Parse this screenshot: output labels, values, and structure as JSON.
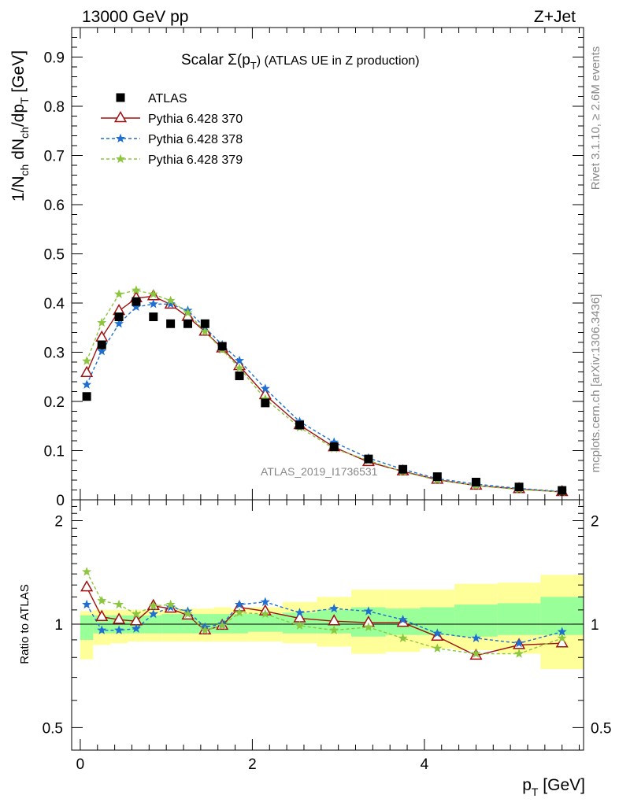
{
  "header": {
    "energy_label": "13000 GeV pp",
    "process_label": "Z+Jet"
  },
  "side_labels": {
    "rivet": "Rivet 3.1.10, ≥ 2.6M events",
    "mcplots": "mcplots.cern.ch [arXiv:1306.3436]"
  },
  "chart_data": [
    {
      "type": "line",
      "title": "Scalar Σ(p_T) (ATLAS UE in Z production)",
      "title_parts": {
        "main": "Scalar Σ(p",
        "sub": "T",
        "tail": ") (ATLAS UE in Z production)"
      },
      "ylabel": "1/N_ch dN_ch/dp_T [GeV]",
      "watermark": "ATLAS_2019_I1736531",
      "xlim": [
        -0.1,
        5.85
      ],
      "ylim": [
        0,
        0.96
      ],
      "yticks": [
        0,
        0.1,
        0.2,
        0.3,
        0.4,
        0.5,
        0.6,
        0.7,
        0.8,
        0.9
      ],
      "ytick_labels": [
        "0",
        "0.1",
        "0.2",
        "0.3",
        "0.4",
        "0.5",
        "0.6",
        "0.7",
        "0.8",
        "0.9"
      ],
      "legend_position": "top-left",
      "x": [
        0.075,
        0.25,
        0.45,
        0.65,
        0.85,
        1.05,
        1.25,
        1.45,
        1.65,
        1.85,
        2.15,
        2.55,
        2.95,
        3.35,
        3.75,
        4.15,
        4.6,
        5.1,
        5.6
      ],
      "series": [
        {
          "name": "ATLAS",
          "color": "#000000",
          "marker": "square",
          "values": [
            0.21,
            0.315,
            0.372,
            0.403,
            0.372,
            0.358,
            0.358,
            0.358,
            0.312,
            0.252,
            0.197,
            0.152,
            0.108,
            0.083,
            0.062,
            0.047,
            0.036,
            0.026,
            0.019
          ]
        },
        {
          "name": "Pythia 6.428 370",
          "color": "#a01010",
          "marker": "triangle",
          "dash": "",
          "values": [
            0.258,
            0.33,
            0.384,
            0.41,
            0.414,
            0.397,
            0.372,
            0.342,
            0.308,
            0.272,
            0.213,
            0.152,
            0.107,
            0.077,
            0.058,
            0.041,
            0.029,
            0.022,
            0.016
          ]
        },
        {
          "name": "Pythia 6.428 378",
          "color": "#1f6fd0",
          "marker": "star",
          "dash": "4,3",
          "values": [
            0.234,
            0.302,
            0.358,
            0.392,
            0.398,
            0.398,
            0.385,
            0.35,
            0.315,
            0.283,
            0.226,
            0.159,
            0.117,
            0.085,
            0.062,
            0.043,
            0.032,
            0.023,
            0.017
          ]
        },
        {
          "name": "Pythia 6.428 379",
          "color": "#8cc63f",
          "marker": "star",
          "dash": "4,3",
          "values": [
            0.282,
            0.36,
            0.418,
            0.426,
            0.418,
            0.405,
            0.38,
            0.342,
            0.305,
            0.268,
            0.205,
            0.147,
            0.104,
            0.08,
            0.057,
            0.04,
            0.029,
            0.021,
            0.016
          ]
        }
      ]
    },
    {
      "type": "line",
      "ylabel": "Ratio to ATLAS",
      "xlabel": "p_T [GeV]",
      "xlim": [
        -0.1,
        5.85
      ],
      "xticks": [
        0,
        2,
        4
      ],
      "xtick_labels": [
        "0",
        "2",
        "4"
      ],
      "ylim": [
        0.43,
        2.3
      ],
      "yscale": "log",
      "yticks": [
        0.5,
        1,
        2
      ],
      "ytick_labels": [
        "0.5",
        "1",
        "2"
      ],
      "bins": [
        [
          0,
          0.15
        ],
        [
          0.15,
          0.35
        ],
        [
          0.35,
          0.55
        ],
        [
          0.55,
          0.75
        ],
        [
          0.75,
          0.95
        ],
        [
          0.95,
          1.15
        ],
        [
          1.15,
          1.35
        ],
        [
          1.35,
          1.55
        ],
        [
          1.55,
          1.75
        ],
        [
          1.75,
          1.95
        ],
        [
          1.95,
          2.35
        ],
        [
          2.35,
          2.75
        ],
        [
          2.75,
          3.15
        ],
        [
          3.15,
          3.55
        ],
        [
          3.55,
          3.95
        ],
        [
          3.95,
          4.35
        ],
        [
          4.35,
          4.85
        ],
        [
          4.85,
          5.35
        ],
        [
          5.35,
          5.85
        ]
      ],
      "band_inner": [
        [
          0.9,
          1.06
        ],
        [
          0.94,
          1.06
        ],
        [
          0.94,
          1.06
        ],
        [
          0.94,
          1.06
        ],
        [
          0.94,
          1.06
        ],
        [
          0.94,
          1.07
        ],
        [
          0.94,
          1.07
        ],
        [
          0.94,
          1.07
        ],
        [
          0.94,
          1.07
        ],
        [
          0.94,
          1.07
        ],
        [
          0.95,
          1.07
        ],
        [
          0.94,
          1.08
        ],
        [
          0.94,
          1.1
        ],
        [
          0.92,
          1.12
        ],
        [
          0.93,
          1.11
        ],
        [
          0.93,
          1.12
        ],
        [
          0.92,
          1.14
        ],
        [
          0.93,
          1.15
        ],
        [
          0.93,
          1.2
        ]
      ],
      "band_outer": [
        [
          0.79,
          1.09
        ],
        [
          0.87,
          1.1
        ],
        [
          0.88,
          1.1
        ],
        [
          0.89,
          1.1
        ],
        [
          0.89,
          1.1
        ],
        [
          0.89,
          1.1
        ],
        [
          0.89,
          1.11
        ],
        [
          0.89,
          1.11
        ],
        [
          0.89,
          1.12
        ],
        [
          0.89,
          1.11
        ],
        [
          0.89,
          1.12
        ],
        [
          0.88,
          1.16
        ],
        [
          0.86,
          1.2
        ],
        [
          0.82,
          1.26
        ],
        [
          0.83,
          1.26
        ],
        [
          0.85,
          1.26
        ],
        [
          0.84,
          1.31
        ],
        [
          0.82,
          1.32
        ],
        [
          0.74,
          1.39
        ]
      ],
      "x": [
        0.075,
        0.25,
        0.45,
        0.65,
        0.85,
        1.05,
        1.25,
        1.45,
        1.65,
        1.85,
        2.15,
        2.55,
        2.95,
        3.35,
        3.75,
        4.15,
        4.6,
        5.1,
        5.6
      ],
      "series": [
        {
          "name": "Pythia 6.428 370",
          "color": "#a01010",
          "marker": "triangle",
          "dash": "",
          "values": [
            1.28,
            1.05,
            1.03,
            1.02,
            1.13,
            1.11,
            1.06,
            0.96,
            0.99,
            1.12,
            1.09,
            1.04,
            1.02,
            1.01,
            1.01,
            0.92,
            0.81,
            0.87,
            0.88
          ]
        },
        {
          "name": "Pythia 6.428 378",
          "color": "#1f6fd0",
          "marker": "star",
          "dash": "4,3",
          "values": [
            1.14,
            0.96,
            0.96,
            0.97,
            1.07,
            1.12,
            1.09,
            0.98,
            1.0,
            1.14,
            1.16,
            1.08,
            1.11,
            1.09,
            1.03,
            0.94,
            0.91,
            0.88,
            0.95
          ]
        },
        {
          "name": "Pythia 6.428 379",
          "color": "#8cc63f",
          "marker": "star",
          "dash": "4,3",
          "values": [
            1.42,
            1.17,
            1.14,
            1.07,
            1.13,
            1.14,
            1.07,
            0.96,
            0.99,
            1.08,
            1.07,
            0.99,
            0.96,
            0.98,
            0.91,
            0.85,
            0.82,
            0.82,
            0.91
          ]
        }
      ]
    }
  ]
}
